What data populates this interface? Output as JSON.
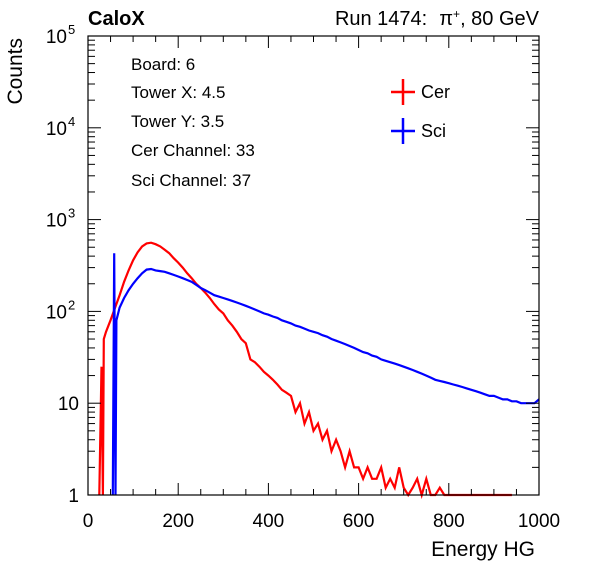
{
  "header": {
    "experiment": "CaloX",
    "run_prefix": "Run 1474:",
    "beam_symbol": "π",
    "beam_charge": "+",
    "beam_energy": ", 80 GeV"
  },
  "info_box": {
    "lines": [
      "Board: 6",
      "Tower X: 4.5",
      "Tower Y: 3.5",
      "Cer Channel: 33",
      "Sci Channel: 37"
    ]
  },
  "chart_data": {
    "type": "line",
    "xlabel": "Energy HG",
    "ylabel": "Counts",
    "xlim": [
      0,
      1000
    ],
    "ylim": [
      1,
      100000
    ],
    "ylog": true,
    "x_ticks": [
      "0",
      "200",
      "400",
      "600",
      "800",
      "1000"
    ],
    "y_ticks": [
      {
        "value": 1,
        "base": "1",
        "exp": ""
      },
      {
        "value": 10,
        "base": "10",
        "exp": ""
      },
      {
        "value": 100,
        "base": "10",
        "exp": "2"
      },
      {
        "value": 1000,
        "base": "10",
        "exp": "3"
      },
      {
        "value": 10000,
        "base": "10",
        "exp": "4"
      },
      {
        "value": 100000,
        "base": "10",
        "exp": "5"
      }
    ],
    "legend_position": "top-right",
    "series": [
      {
        "name": "Cer",
        "color": "#ff0000",
        "points": [
          [
            25,
            1
          ],
          [
            30,
            25
          ],
          [
            33,
            1
          ],
          [
            35,
            50
          ],
          [
            40,
            60
          ],
          [
            50,
            80
          ],
          [
            60,
            110
          ],
          [
            70,
            150
          ],
          [
            80,
            210
          ],
          [
            90,
            280
          ],
          [
            100,
            360
          ],
          [
            110,
            440
          ],
          [
            120,
            510
          ],
          [
            130,
            550
          ],
          [
            140,
            560
          ],
          [
            150,
            540
          ],
          [
            160,
            510
          ],
          [
            170,
            470
          ],
          [
            180,
            430
          ],
          [
            190,
            380
          ],
          [
            200,
            340
          ],
          [
            210,
            300
          ],
          [
            220,
            260
          ],
          [
            230,
            230
          ],
          [
            240,
            200
          ],
          [
            250,
            180
          ],
          [
            260,
            160
          ],
          [
            270,
            140
          ],
          [
            280,
            120
          ],
          [
            290,
            105
          ],
          [
            300,
            95
          ],
          [
            310,
            80
          ],
          [
            320,
            70
          ],
          [
            330,
            60
          ],
          [
            340,
            50
          ],
          [
            350,
            45
          ],
          [
            360,
            30
          ],
          [
            370,
            28
          ],
          [
            380,
            25
          ],
          [
            390,
            22
          ],
          [
            400,
            20
          ],
          [
            410,
            18
          ],
          [
            420,
            16
          ],
          [
            430,
            14
          ],
          [
            440,
            13
          ],
          [
            450,
            12
          ],
          [
            460,
            8
          ],
          [
            470,
            10
          ],
          [
            480,
            6
          ],
          [
            490,
            8
          ],
          [
            500,
            5
          ],
          [
            510,
            6
          ],
          [
            520,
            4
          ],
          [
            530,
            5
          ],
          [
            540,
            3
          ],
          [
            550,
            4
          ],
          [
            560,
            3
          ],
          [
            570,
            2
          ],
          [
            580,
            3
          ],
          [
            590,
            2
          ],
          [
            600,
            2
          ],
          [
            610,
            1.5
          ],
          [
            620,
            2
          ],
          [
            630,
            1.5
          ],
          [
            640,
            1.5
          ],
          [
            650,
            2
          ],
          [
            660,
            1.2
          ],
          [
            670,
            1.5
          ],
          [
            680,
            1.2
          ],
          [
            690,
            2
          ],
          [
            700,
            1.2
          ],
          [
            710,
            1
          ],
          [
            720,
            1.2
          ],
          [
            730,
            1.5
          ],
          [
            740,
            1
          ],
          [
            750,
            1.5
          ],
          [
            760,
            1
          ],
          [
            770,
            1
          ],
          [
            780,
            1.2
          ],
          [
            790,
            1
          ],
          [
            800,
            1
          ],
          [
            820,
            1
          ],
          [
            840,
            1
          ],
          [
            860,
            1
          ],
          [
            880,
            1
          ],
          [
            900,
            1
          ],
          [
            920,
            1
          ],
          [
            940,
            1
          ]
        ]
      },
      {
        "name": "Sci",
        "color": "#0000ff",
        "points": [
          [
            55,
            1
          ],
          [
            58,
            430
          ],
          [
            61,
            1
          ],
          [
            63,
            80
          ],
          [
            70,
            110
          ],
          [
            80,
            140
          ],
          [
            90,
            170
          ],
          [
            100,
            200
          ],
          [
            110,
            230
          ],
          [
            120,
            260
          ],
          [
            130,
            285
          ],
          [
            140,
            290
          ],
          [
            150,
            280
          ],
          [
            160,
            275
          ],
          [
            170,
            270
          ],
          [
            180,
            260
          ],
          [
            190,
            250
          ],
          [
            200,
            240
          ],
          [
            210,
            230
          ],
          [
            220,
            220
          ],
          [
            230,
            210
          ],
          [
            240,
            195
          ],
          [
            250,
            180
          ],
          [
            260,
            170
          ],
          [
            270,
            160
          ],
          [
            280,
            150
          ],
          [
            290,
            145
          ],
          [
            300,
            140
          ],
          [
            310,
            135
          ],
          [
            320,
            130
          ],
          [
            330,
            125
          ],
          [
            340,
            120
          ],
          [
            350,
            115
          ],
          [
            360,
            110
          ],
          [
            370,
            105
          ],
          [
            380,
            100
          ],
          [
            390,
            95
          ],
          [
            400,
            92
          ],
          [
            410,
            88
          ],
          [
            420,
            85
          ],
          [
            430,
            80
          ],
          [
            440,
            77
          ],
          [
            450,
            74
          ],
          [
            460,
            70
          ],
          [
            470,
            68
          ],
          [
            480,
            65
          ],
          [
            490,
            62
          ],
          [
            500,
            60
          ],
          [
            510,
            58
          ],
          [
            520,
            55
          ],
          [
            530,
            53
          ],
          [
            540,
            50
          ],
          [
            550,
            48
          ],
          [
            560,
            46
          ],
          [
            570,
            44
          ],
          [
            580,
            42
          ],
          [
            590,
            40
          ],
          [
            600,
            38
          ],
          [
            610,
            36
          ],
          [
            620,
            35
          ],
          [
            630,
            33
          ],
          [
            640,
            32
          ],
          [
            650,
            30
          ],
          [
            660,
            29
          ],
          [
            670,
            28
          ],
          [
            680,
            27
          ],
          [
            690,
            26
          ],
          [
            700,
            25
          ],
          [
            710,
            24
          ],
          [
            720,
            23
          ],
          [
            730,
            22
          ],
          [
            740,
            21
          ],
          [
            750,
            20
          ],
          [
            760,
            19
          ],
          [
            770,
            18
          ],
          [
            780,
            17.5
          ],
          [
            790,
            17
          ],
          [
            800,
            16.5
          ],
          [
            810,
            16
          ],
          [
            820,
            15.5
          ],
          [
            830,
            15
          ],
          [
            840,
            14.5
          ],
          [
            850,
            14
          ],
          [
            860,
            13.5
          ],
          [
            870,
            13
          ],
          [
            880,
            12.5
          ],
          [
            890,
            12
          ],
          [
            900,
            12
          ],
          [
            910,
            11.5
          ],
          [
            920,
            11
          ],
          [
            930,
            11
          ],
          [
            940,
            10.5
          ],
          [
            950,
            10.5
          ],
          [
            960,
            10
          ],
          [
            970,
            10
          ],
          [
            980,
            10
          ],
          [
            990,
            10
          ],
          [
            1000,
            11
          ]
        ]
      }
    ]
  }
}
